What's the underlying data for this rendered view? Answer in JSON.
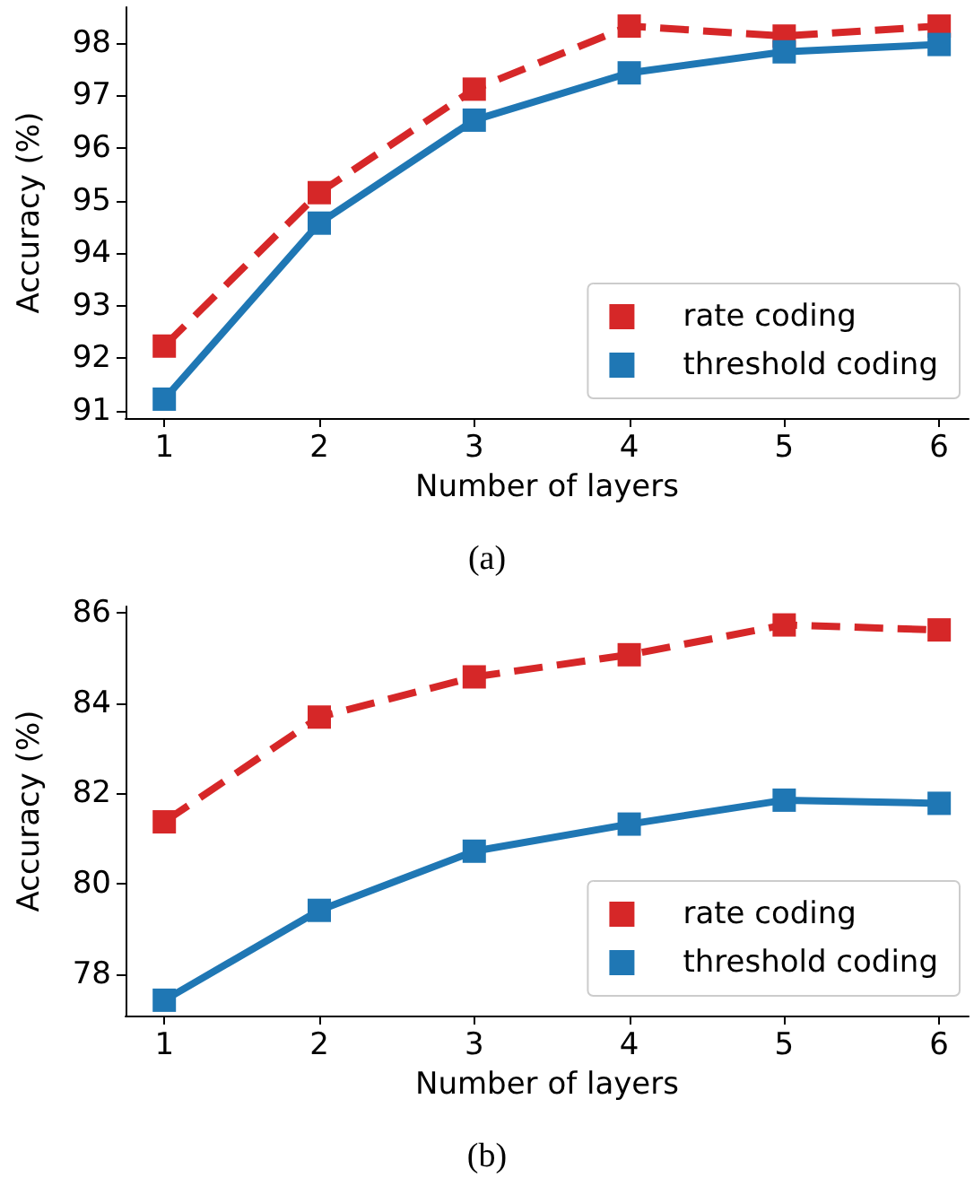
{
  "chart_data": [
    {
      "type": "line",
      "xlabel": "Number of layers",
      "ylabel": "Accuracy (%)",
      "annotations": [
        "(a)"
      ],
      "x": [
        1,
        2,
        3,
        4,
        5,
        6
      ],
      "xlim": [
        0.75,
        6.19
      ],
      "xticks": [
        1,
        2,
        3,
        4,
        5,
        6
      ],
      "ylim": [
        90.86,
        98.68
      ],
      "yticks": [
        91,
        92,
        93,
        94,
        95,
        96,
        97,
        98
      ],
      "grid": false,
      "legend": "bottom right",
      "marker": "square",
      "series": [
        {
          "name": "rate coding",
          "color": "#d62728",
          "line_style": "dashed",
          "values": [
            92.23,
            95.15,
            97.12,
            98.32,
            98.13,
            98.32
          ]
        },
        {
          "name": "threshold coding",
          "color": "#1f77b4",
          "line_style": "solid",
          "values": [
            91.22,
            94.57,
            96.53,
            97.43,
            97.83,
            97.97
          ]
        }
      ]
    },
    {
      "type": "line",
      "xlabel": "Number of layers",
      "ylabel": "Accuracy (%)",
      "annotations": [
        "(b)"
      ],
      "x": [
        1,
        2,
        3,
        4,
        5,
        6
      ],
      "xlim": [
        0.75,
        6.19
      ],
      "xticks": [
        1,
        2,
        3,
        4,
        5,
        6
      ],
      "ylim": [
        77.08,
        86.14
      ],
      "yticks": [
        78,
        80,
        82,
        84,
        86
      ],
      "grid": false,
      "legend": "bottom right",
      "marker": "square",
      "series": [
        {
          "name": "rate coding",
          "color": "#d62728",
          "line_style": "dashed",
          "values": [
            81.37,
            83.69,
            84.58,
            85.07,
            85.73,
            85.62
          ]
        },
        {
          "name": "threshold coding",
          "color": "#1f77b4",
          "line_style": "solid",
          "values": [
            77.42,
            79.41,
            80.72,
            81.32,
            81.85,
            81.78
          ]
        }
      ]
    }
  ]
}
